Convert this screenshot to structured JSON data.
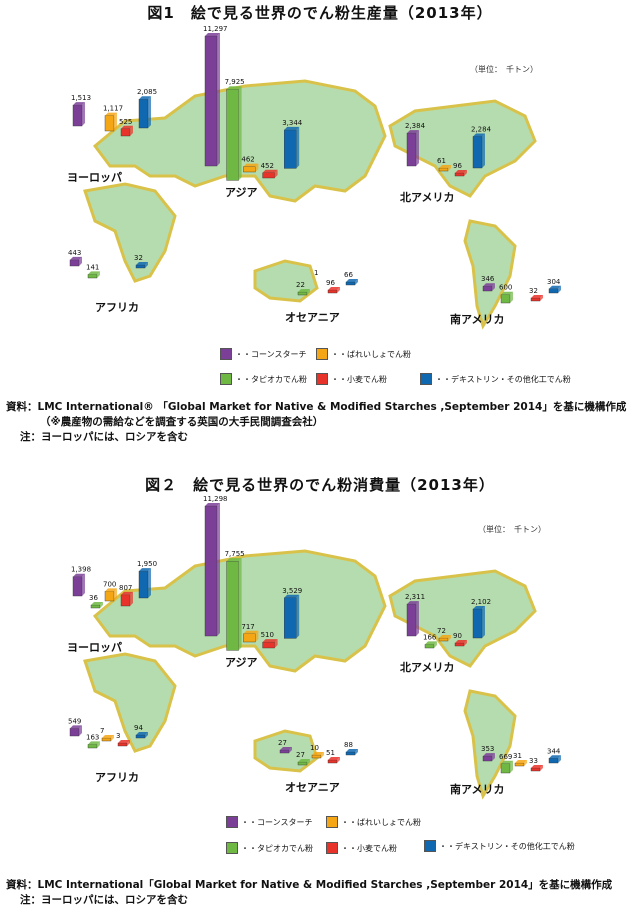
{
  "colors": {
    "corn": "#7b3f98",
    "potato": "#f5a614",
    "tapioca": "#6fb843",
    "wheat": "#e8332a",
    "dextrin": "#1068b0",
    "land": "#b5dcae",
    "rim": "#d9c24a"
  },
  "legend_labels": {
    "corn": "・・コーンスターチ",
    "potato": "・・ばれいしょでん粉",
    "tapioca": "・・タピオカでん粉",
    "wheat": "・・小麦でん粉",
    "dextrin": "・・デキストリン・その他化工でん粉"
  },
  "figures": [
    {
      "title": "図1　絵で見る世界のでん粉生産量（2013年）",
      "unit": "（単位：　千トン）",
      "source_line1": "資料：LMC International® 「Global Market for Native & Modified Starches ,September 2014」を基に機構作成",
      "source_line2": "（※農産物の需給などを調査する英国の大手民間調査会社）",
      "note": "注：ヨーロッパには、ロシアを含む"
    },
    {
      "title": "図２　絵で見る世界のでん粉消費量（2013年）",
      "unit": "（単位：　千トン）",
      "source_line1": "資料：LMC International「Global Market for Native & Modified Starches ,September 2014」を基に機構作成",
      "note": "注：ヨーロッパには、ロシアを含む"
    }
  ],
  "chart_data": [
    {
      "type": "bar",
      "title": "図1　絵で見る世界のでん粉生産量（2013年）",
      "unit": "（単位：　千トン）",
      "categories": [
        "ヨーロッパ",
        "アジア",
        "北アメリカ",
        "アフリカ",
        "オセアニア",
        "南アメリカ"
      ],
      "series": [
        {
          "name": "・・コーンスターチ",
          "key": "corn",
          "values": [
            1513,
            11297,
            2384,
            443,
            null,
            346
          ]
        },
        {
          "name": "・・タピオカでん粉",
          "key": "tapioca",
          "values": [
            null,
            7925,
            null,
            141,
            22,
            600
          ]
        },
        {
          "name": "・・ばれいしょでん粉",
          "key": "potato",
          "values": [
            1117,
            462,
            61,
            null,
            null,
            null
          ]
        },
        {
          "name": "・・小麦でん粉",
          "key": "wheat",
          "values": [
            525,
            452,
            96,
            null,
            96,
            32
          ]
        },
        {
          "name": "・・デキストリン・その他化工でん粉",
          "key": "dextrin",
          "values": [
            2085,
            3344,
            2284,
            32,
            66,
            304
          ]
        }
      ],
      "extra_labels": [
        {
          "region": "オセアニア",
          "value": "1"
        }
      ]
    },
    {
      "type": "bar",
      "title": "図２　絵で見る世界のでん粉消費量（2013年）",
      "unit": "（単位：　千トン）",
      "categories": [
        "ヨーロッパ",
        "アジア",
        "北アメリカ",
        "アフリカ",
        "オセアニア",
        "南アメリカ"
      ],
      "series": [
        {
          "name": "・・コーンスターチ",
          "key": "corn",
          "values": [
            1398,
            11298,
            2311,
            549,
            27,
            353
          ]
        },
        {
          "name": "・・タピオカでん粉",
          "key": "tapioca",
          "values": [
            36,
            7755,
            166,
            163,
            27,
            669
          ]
        },
        {
          "name": "・・ばれいしょでん粉",
          "key": "potato",
          "values": [
            700,
            717,
            72,
            7,
            10,
            31
          ]
        },
        {
          "name": "・・小麦でん粉",
          "key": "wheat",
          "values": [
            807,
            510,
            90,
            3,
            51,
            33
          ]
        },
        {
          "name": "・・デキストリン・その他化工でん粉",
          "key": "dextrin",
          "values": [
            1950,
            3529,
            2102,
            94,
            88,
            344
          ]
        }
      ]
    }
  ]
}
